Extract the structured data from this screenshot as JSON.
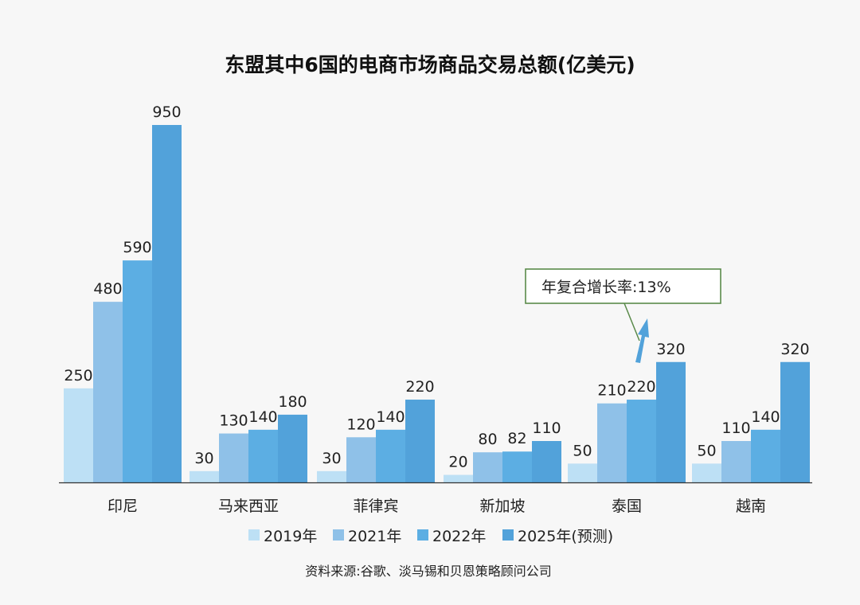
{
  "chart_data": {
    "type": "bar",
    "title": "东盟其中6国的电商市场商品交易总额(亿美元)",
    "categories": [
      "印尼",
      "马来西亚",
      "菲律宾",
      "新加坡",
      "泰国",
      "越南"
    ],
    "series": [
      {
        "name": "2019年",
        "color": "#bde0f5",
        "values": [
          250,
          30,
          30,
          20,
          50,
          50
        ]
      },
      {
        "name": "2021年",
        "color": "#8fc1e8",
        "values": [
          480,
          130,
          120,
          80,
          210,
          110
        ]
      },
      {
        "name": "2022年",
        "color": "#5caee3",
        "values": [
          590,
          140,
          140,
          82,
          220,
          140
        ]
      },
      {
        "name": "2025年(预测)",
        "color": "#52a2da",
        "values": [
          950,
          180,
          220,
          110,
          320,
          320
        ]
      }
    ],
    "ylim": [
      0,
      950
    ],
    "grid": false,
    "legend": "bottom",
    "annotation": {
      "text": "年复合增长率:13%",
      "target": "泰国",
      "border_color": "#5a8a4a",
      "arrow_color": "#52a2da"
    },
    "source": "资料来源:谷歌、淡马锡和贝恩策略顾问公司"
  }
}
